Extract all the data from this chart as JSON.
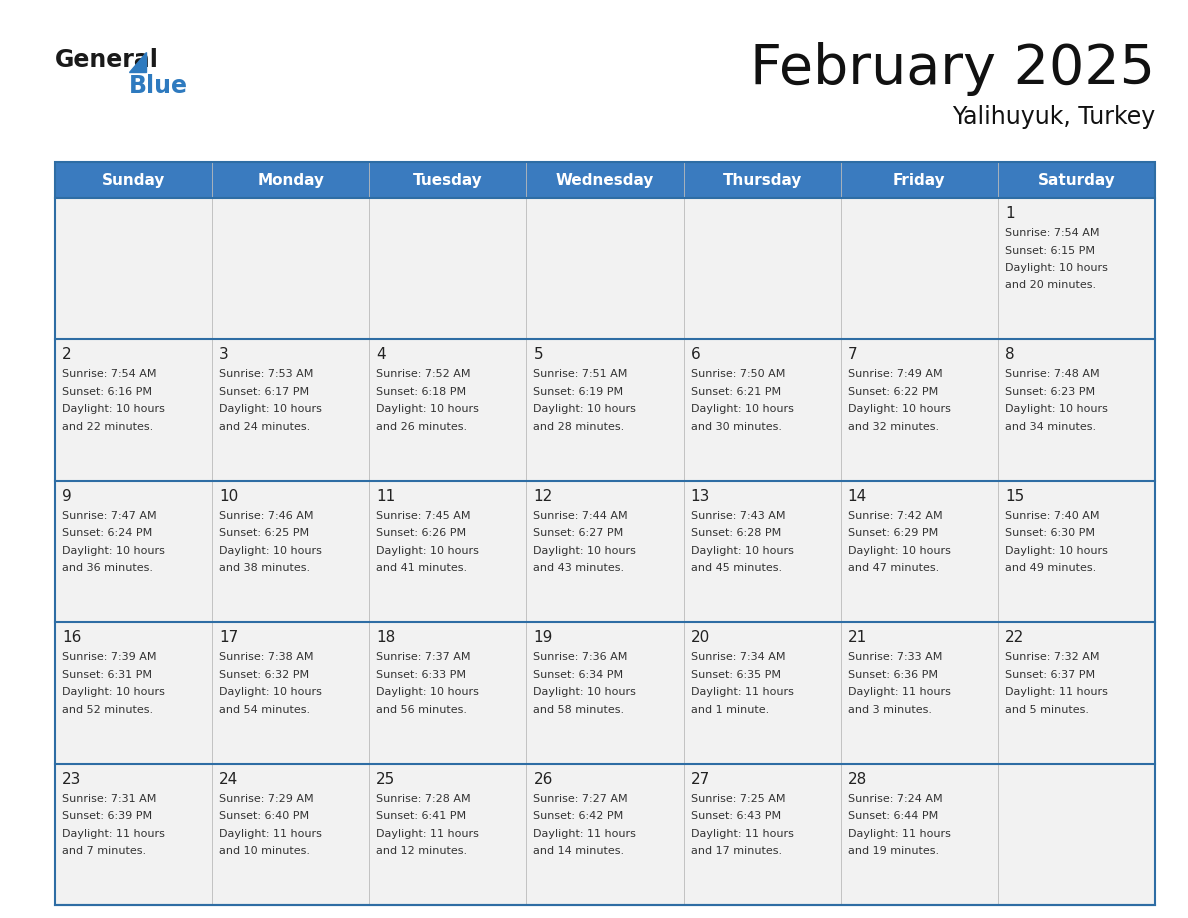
{
  "title": "February 2025",
  "subtitle": "Yalihuyuk, Turkey",
  "header_bg": "#3a7bbf",
  "header_text_color": "#ffffff",
  "cell_bg": "#f2f2f2",
  "border_color": "#2e6da4",
  "text_color": "#333333",
  "day_number_color": "#222222",
  "day_headers": [
    "Sunday",
    "Monday",
    "Tuesday",
    "Wednesday",
    "Thursday",
    "Friday",
    "Saturday"
  ],
  "logo_general_color": "#1a1a1a",
  "logo_blue_color": "#2e7abf",
  "calendar_data": [
    [
      null,
      null,
      null,
      null,
      null,
      null,
      {
        "day": 1,
        "sunrise": "7:54 AM",
        "sunset": "6:15 PM",
        "daylight_hours": 10,
        "daylight_minutes": 20
      }
    ],
    [
      {
        "day": 2,
        "sunrise": "7:54 AM",
        "sunset": "6:16 PM",
        "daylight_hours": 10,
        "daylight_minutes": 22
      },
      {
        "day": 3,
        "sunrise": "7:53 AM",
        "sunset": "6:17 PM",
        "daylight_hours": 10,
        "daylight_minutes": 24
      },
      {
        "day": 4,
        "sunrise": "7:52 AM",
        "sunset": "6:18 PM",
        "daylight_hours": 10,
        "daylight_minutes": 26
      },
      {
        "day": 5,
        "sunrise": "7:51 AM",
        "sunset": "6:19 PM",
        "daylight_hours": 10,
        "daylight_minutes": 28
      },
      {
        "day": 6,
        "sunrise": "7:50 AM",
        "sunset": "6:21 PM",
        "daylight_hours": 10,
        "daylight_minutes": 30
      },
      {
        "day": 7,
        "sunrise": "7:49 AM",
        "sunset": "6:22 PM",
        "daylight_hours": 10,
        "daylight_minutes": 32
      },
      {
        "day": 8,
        "sunrise": "7:48 AM",
        "sunset": "6:23 PM",
        "daylight_hours": 10,
        "daylight_minutes": 34
      }
    ],
    [
      {
        "day": 9,
        "sunrise": "7:47 AM",
        "sunset": "6:24 PM",
        "daylight_hours": 10,
        "daylight_minutes": 36
      },
      {
        "day": 10,
        "sunrise": "7:46 AM",
        "sunset": "6:25 PM",
        "daylight_hours": 10,
        "daylight_minutes": 38
      },
      {
        "day": 11,
        "sunrise": "7:45 AM",
        "sunset": "6:26 PM",
        "daylight_hours": 10,
        "daylight_minutes": 41
      },
      {
        "day": 12,
        "sunrise": "7:44 AM",
        "sunset": "6:27 PM",
        "daylight_hours": 10,
        "daylight_minutes": 43
      },
      {
        "day": 13,
        "sunrise": "7:43 AM",
        "sunset": "6:28 PM",
        "daylight_hours": 10,
        "daylight_minutes": 45
      },
      {
        "day": 14,
        "sunrise": "7:42 AM",
        "sunset": "6:29 PM",
        "daylight_hours": 10,
        "daylight_minutes": 47
      },
      {
        "day": 15,
        "sunrise": "7:40 AM",
        "sunset": "6:30 PM",
        "daylight_hours": 10,
        "daylight_minutes": 49
      }
    ],
    [
      {
        "day": 16,
        "sunrise": "7:39 AM",
        "sunset": "6:31 PM",
        "daylight_hours": 10,
        "daylight_minutes": 52
      },
      {
        "day": 17,
        "sunrise": "7:38 AM",
        "sunset": "6:32 PM",
        "daylight_hours": 10,
        "daylight_minutes": 54
      },
      {
        "day": 18,
        "sunrise": "7:37 AM",
        "sunset": "6:33 PM",
        "daylight_hours": 10,
        "daylight_minutes": 56
      },
      {
        "day": 19,
        "sunrise": "7:36 AM",
        "sunset": "6:34 PM",
        "daylight_hours": 10,
        "daylight_minutes": 58
      },
      {
        "day": 20,
        "sunrise": "7:34 AM",
        "sunset": "6:35 PM",
        "daylight_hours": 11,
        "daylight_minutes": 1
      },
      {
        "day": 21,
        "sunrise": "7:33 AM",
        "sunset": "6:36 PM",
        "daylight_hours": 11,
        "daylight_minutes": 3
      },
      {
        "day": 22,
        "sunrise": "7:32 AM",
        "sunset": "6:37 PM",
        "daylight_hours": 11,
        "daylight_minutes": 5
      }
    ],
    [
      {
        "day": 23,
        "sunrise": "7:31 AM",
        "sunset": "6:39 PM",
        "daylight_hours": 11,
        "daylight_minutes": 7
      },
      {
        "day": 24,
        "sunrise": "7:29 AM",
        "sunset": "6:40 PM",
        "daylight_hours": 11,
        "daylight_minutes": 10
      },
      {
        "day": 25,
        "sunrise": "7:28 AM",
        "sunset": "6:41 PM",
        "daylight_hours": 11,
        "daylight_minutes": 12
      },
      {
        "day": 26,
        "sunrise": "7:27 AM",
        "sunset": "6:42 PM",
        "daylight_hours": 11,
        "daylight_minutes": 14
      },
      {
        "day": 27,
        "sunrise": "7:25 AM",
        "sunset": "6:43 PM",
        "daylight_hours": 11,
        "daylight_minutes": 17
      },
      {
        "day": 28,
        "sunrise": "7:24 AM",
        "sunset": "6:44 PM",
        "daylight_hours": 11,
        "daylight_minutes": 19
      },
      null
    ]
  ]
}
